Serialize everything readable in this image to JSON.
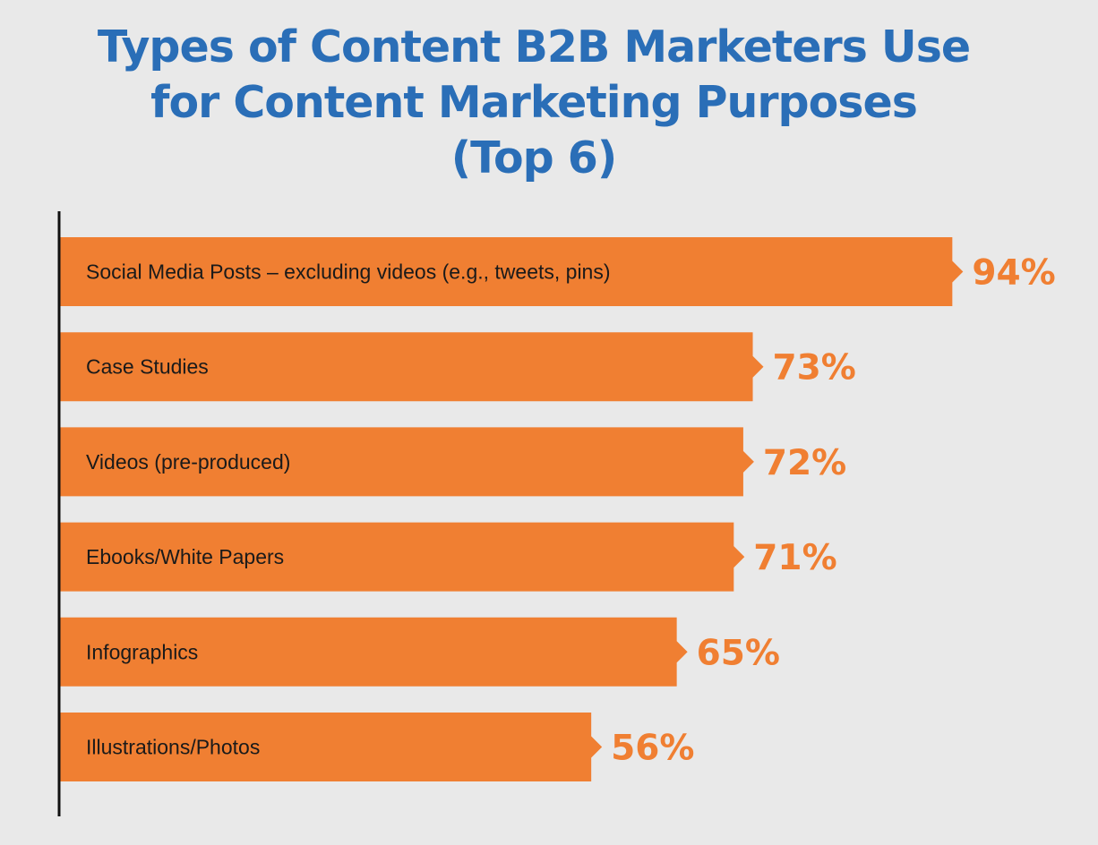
{
  "chart_data": {
    "type": "bar",
    "orientation": "horizontal",
    "title_lines": [
      "Types of Content B2B Marketers Use",
      "for Content Marketing Purposes",
      "(Top 6)"
    ],
    "categories": [
      "Social Media Posts – excluding videos (e.g., tweets, pins)",
      "Case Studies",
      "Videos (pre-produced)",
      "Ebooks/White Papers",
      "Infographics",
      "Illustrations/Photos"
    ],
    "values": [
      94,
      73,
      72,
      71,
      65,
      56
    ],
    "value_labels": [
      "94%",
      "73%",
      "72%",
      "71%",
      "65%",
      "56%"
    ],
    "unit": "%",
    "xlim": [
      0,
      100
    ],
    "grid": false,
    "legend": "none",
    "colors": {
      "bar": "#f07f32",
      "value_label": "#f07f32",
      "title": "#2a6eb7",
      "axis": "#111111",
      "background": "#e9e9e9"
    }
  }
}
